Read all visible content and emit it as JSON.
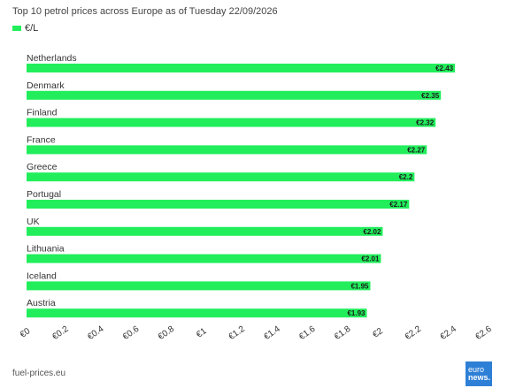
{
  "title": "Top 10 petrol prices across Europe as of Tuesday 22/09/2026",
  "legend": {
    "label": "€/L",
    "color": "#22ee5c"
  },
  "source": "fuel-prices.eu",
  "logo": {
    "line1": "euro",
    "line2": "news."
  },
  "chart_data": {
    "type": "bar",
    "orientation": "horizontal",
    "categories": [
      "Netherlands",
      "Denmark",
      "Finland",
      "France",
      "Greece",
      "Portugal",
      "UK",
      "Lithuania",
      "Iceland",
      "Austria"
    ],
    "series": [
      {
        "name": "€/L",
        "values": [
          2.43,
          2.35,
          2.32,
          2.27,
          2.2,
          2.17,
          2.02,
          2.01,
          1.95,
          1.93
        ],
        "color": "#22ee5c"
      }
    ],
    "data_labels": [
      "€2.43",
      "€2.35",
      "€2.32",
      "€2.27",
      "€2.2",
      "€2.17",
      "€2.02",
      "€2.01",
      "€1.95",
      "€1.93"
    ],
    "xlim": [
      0,
      2.6
    ],
    "xticks": [
      0,
      0.2,
      0.4,
      0.6,
      0.8,
      1,
      1.2,
      1.4,
      1.6,
      1.8,
      2,
      2.2,
      2.4,
      2.6
    ],
    "xtick_labels": [
      "€0",
      "€0.2",
      "€0.4",
      "€0.6",
      "€0.8",
      "€1",
      "€1.2",
      "€1.4",
      "€1.6",
      "€1.8",
      "€2",
      "€2.2",
      "€2.4",
      "€2.6"
    ],
    "grid": false,
    "legend_position": "top-left"
  }
}
